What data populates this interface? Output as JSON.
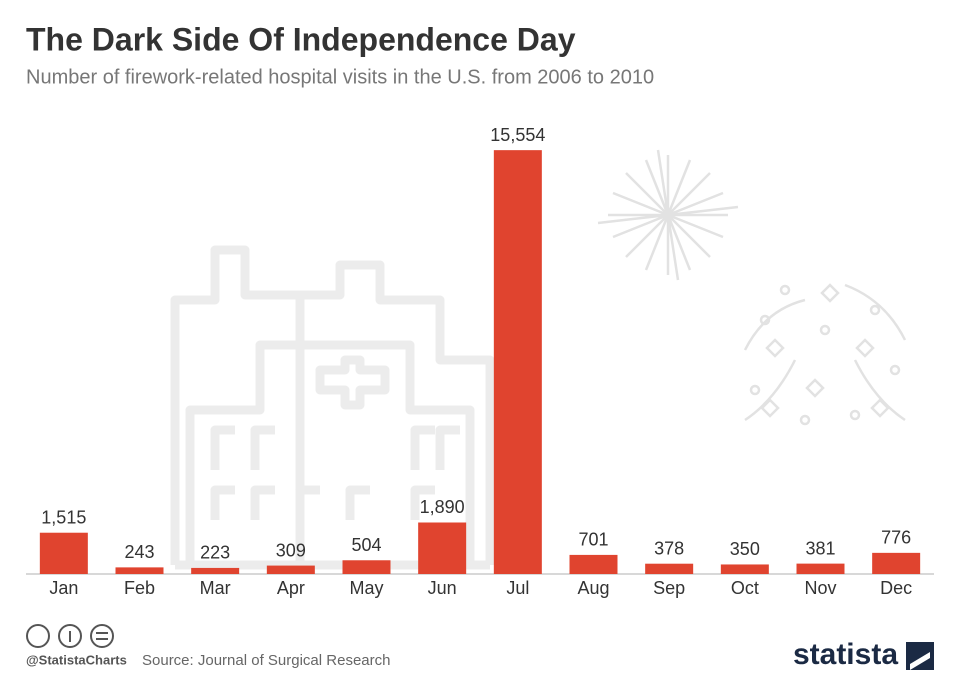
{
  "chart_data": {
    "type": "bar",
    "title": "The Dark Side Of Independence Day",
    "subtitle": "Number of firework-related hospital visits in the U.S. from 2006 to 2010",
    "categories": [
      "Jan",
      "Feb",
      "Mar",
      "Apr",
      "May",
      "Jun",
      "Jul",
      "Aug",
      "Sep",
      "Oct",
      "Nov",
      "Dec"
    ],
    "values": [
      1515,
      243,
      223,
      309,
      504,
      1890,
      15554,
      701,
      378,
      350,
      381,
      776
    ],
    "value_labels": [
      "1,515",
      "243",
      "223",
      "309",
      "504",
      "1,890",
      "15,554",
      "701",
      "378",
      "350",
      "381",
      "776"
    ],
    "color": "#e0442f",
    "ylim": [
      0,
      16000
    ],
    "grid": false
  },
  "footer": {
    "credit": "@StatistaCharts",
    "source": "Source: Journal of Surgical Research",
    "logo": "statista"
  }
}
